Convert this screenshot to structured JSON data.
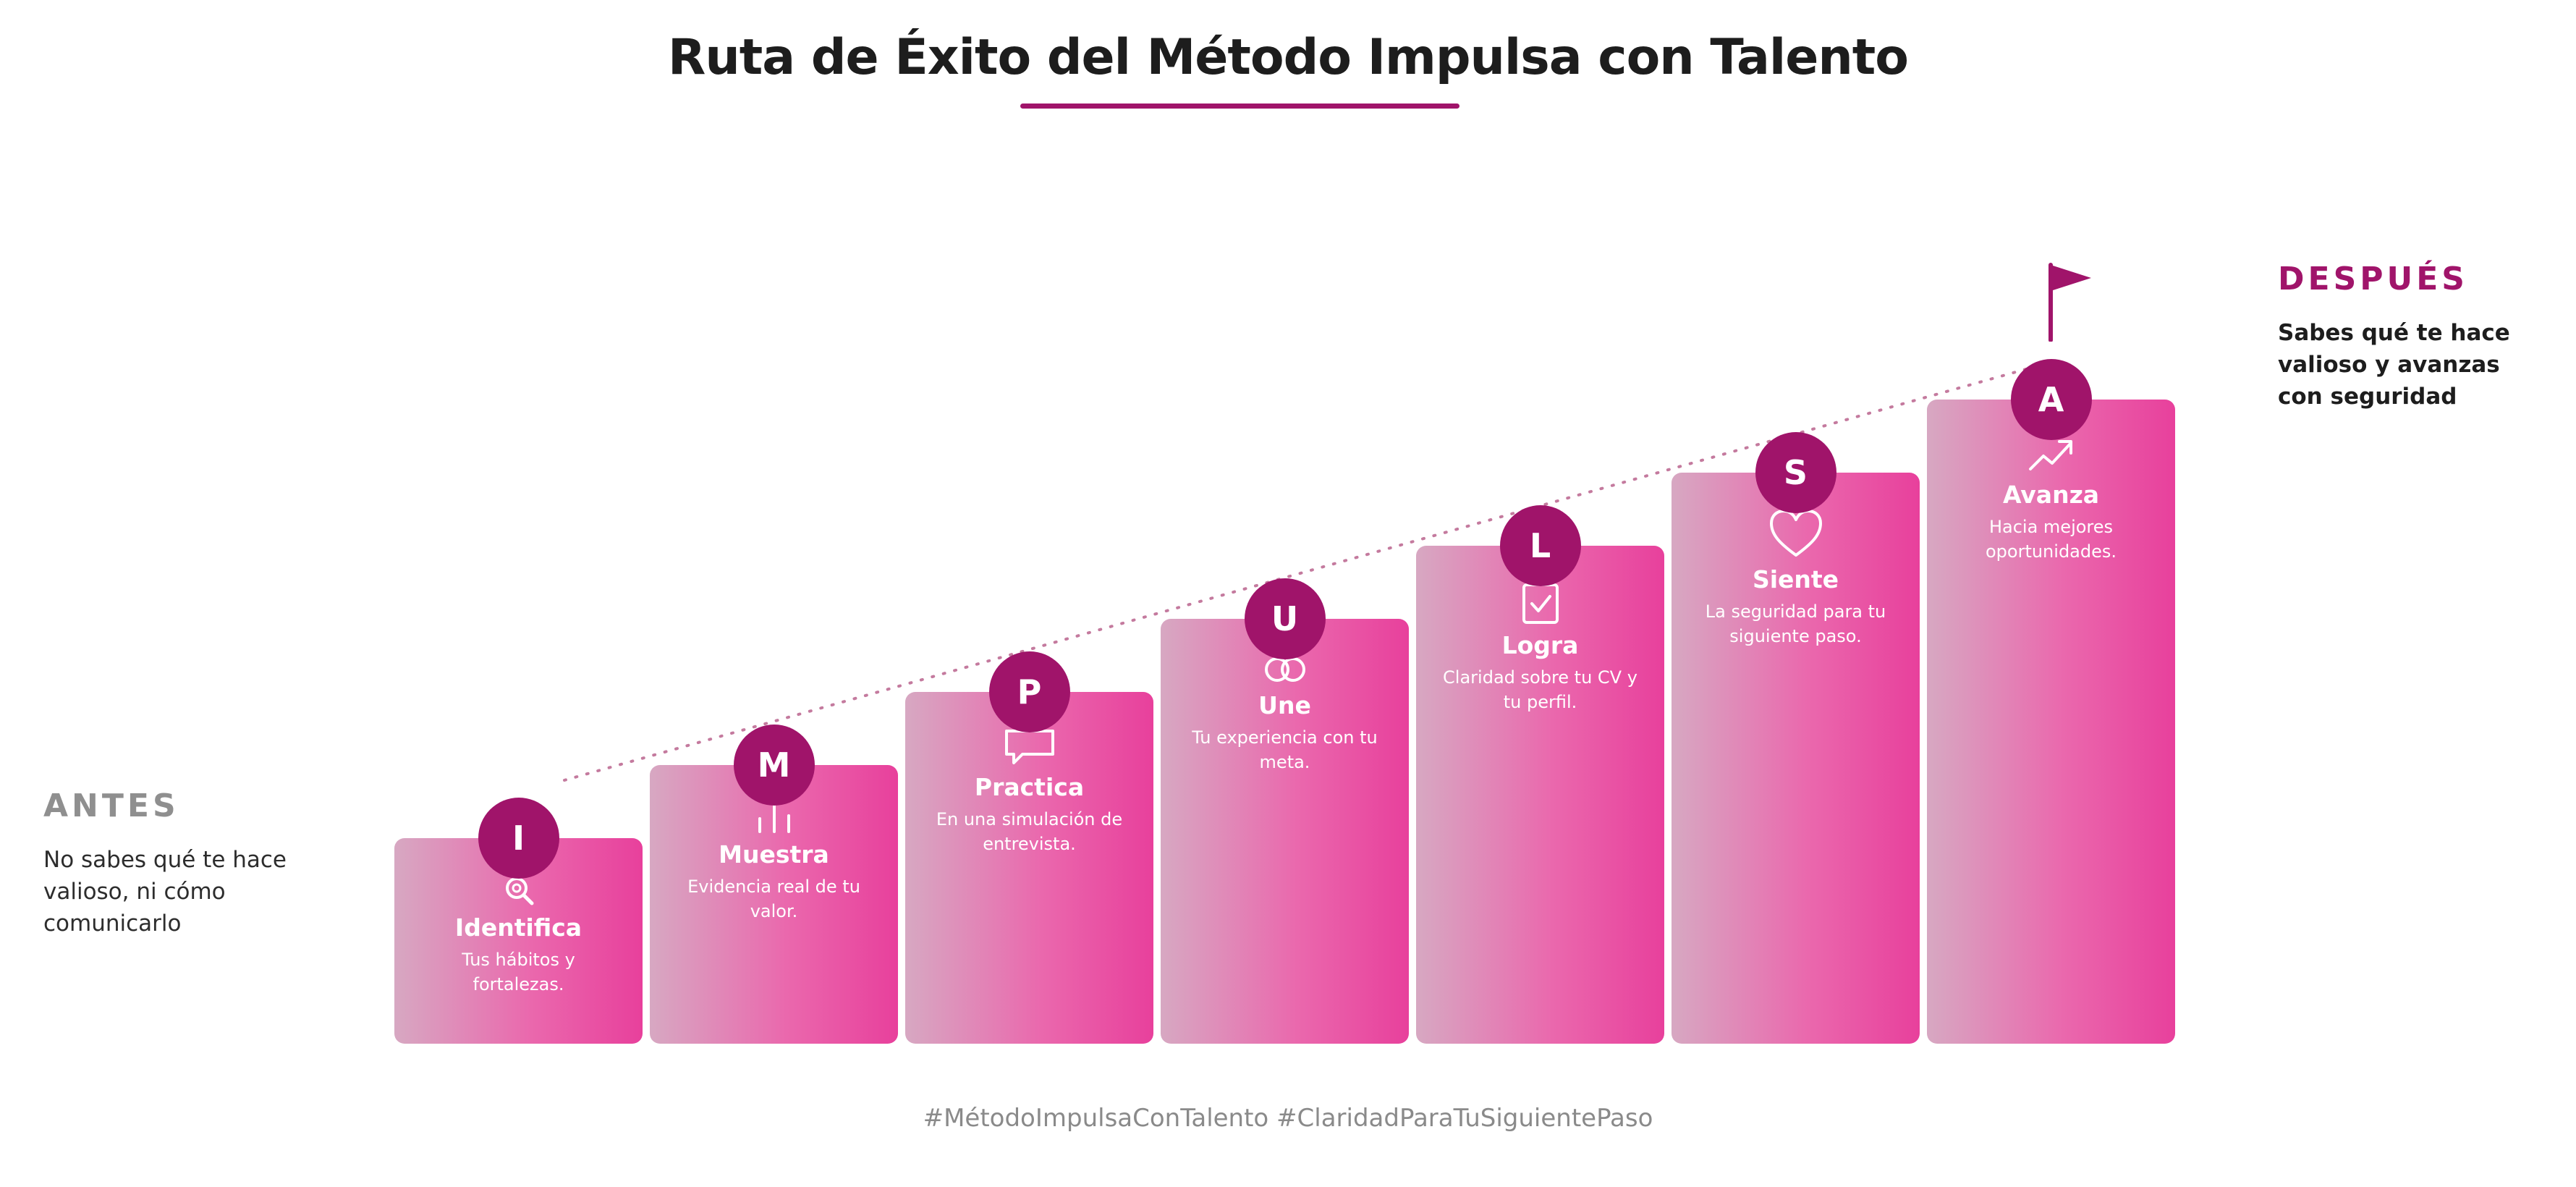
{
  "header": {
    "title": "Ruta de Éxito del Método Impulsa con Talento"
  },
  "before": {
    "label": "ANTES",
    "text": "No sabes qué te hace valioso, ni cómo comunicarlo"
  },
  "after": {
    "label": "DESPUÉS",
    "text": "Sabes qué te hace valioso y avanzas con seguridad"
  },
  "steps": [
    {
      "letter": "I",
      "label": "Identifica",
      "desc": "Tus hábitos y fortalezas.",
      "icon": "search-icon"
    },
    {
      "letter": "M",
      "label": "Muestra",
      "desc": "Evidencia real de tu valor.",
      "icon": "bar-chart-icon"
    },
    {
      "letter": "P",
      "label": "Practica",
      "desc": "En una simulación de entrevista.",
      "icon": "speech-bubble-icon"
    },
    {
      "letter": "U",
      "label": "Une",
      "desc": "Tu experiencia con tu meta.",
      "icon": "linked-rings-icon"
    },
    {
      "letter": "L",
      "label": "Logra",
      "desc": "Claridad sobre tu CV y tu perfil.",
      "icon": "checkbox-icon"
    },
    {
      "letter": "S",
      "label": "Siente",
      "desc": "La seguridad para tu siguiente paso.",
      "icon": "heart-icon"
    },
    {
      "letter": "A",
      "label": "Avanza",
      "desc": "Hacia mejores oportunidades.",
      "icon": "trending-up-icon"
    }
  ],
  "footer": {
    "hashtags": "#MétodoImpulsaConTalento #ClaridadParaTuSiguientePaso"
  },
  "colors": {
    "accent": "#a0146a",
    "step_gradient_start": "#d7a8c2",
    "step_gradient_end": "#e8409c",
    "dotted_line": "#c47a9e"
  }
}
